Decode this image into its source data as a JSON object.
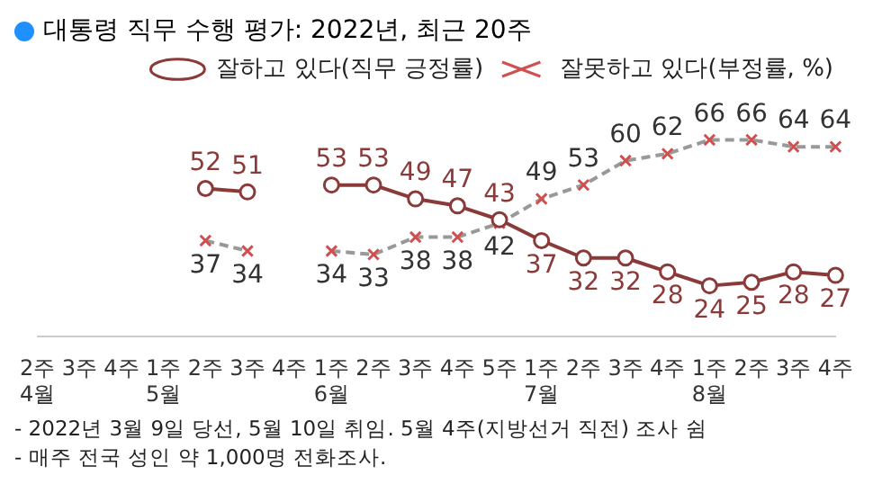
{
  "chart_data": {
    "type": "line",
    "title": "대통령 직무 수행 평가: 2022년, 최근 20주",
    "categories": [
      "2주\n4월",
      "3주",
      "4주",
      "1주\n5월",
      "2주",
      "3주",
      "4주",
      "1주\n6월",
      "2주",
      "3주",
      "4주",
      "5주",
      "1주\n7월",
      "2주",
      "3주",
      "4주",
      "1주\n8월",
      "2주",
      "3주",
      "4주"
    ],
    "series": [
      {
        "name": "잘하고 있다(직무 긍정률)",
        "color": "#8b3a3a",
        "marker": "circle",
        "line_style": "solid",
        "values": [
          null,
          null,
          null,
          null,
          52,
          51,
          null,
          53,
          53,
          49,
          47,
          43,
          37,
          32,
          32,
          28,
          24,
          25,
          28,
          27
        ]
      },
      {
        "name": "잘못하고 있다(부정률, %)",
        "color": "#999999",
        "marker": "cross",
        "line_style": "dashed",
        "values": [
          null,
          null,
          null,
          null,
          37,
          34,
          null,
          34,
          33,
          38,
          38,
          42,
          49,
          53,
          60,
          62,
          66,
          66,
          64,
          64
        ]
      }
    ],
    "data_labels": true,
    "legend": "top right",
    "grid": false,
    "annotations": [
      "- 2022년 3월 9일 당선, 5월 10일 취임. 5월 4주(지방선거 직전) 조사 쉼",
      "- 매주 전국 성인 약 1,000명 전화조사."
    ]
  }
}
